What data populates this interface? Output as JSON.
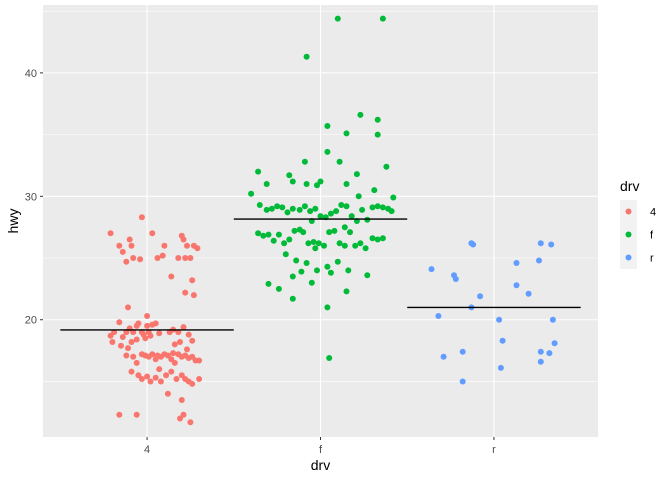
{
  "chart_data": {
    "type": "scatter",
    "subtype": "jitter with per-group mean line",
    "xlabel": "drv",
    "ylabel": "hwy",
    "categories": [
      "4",
      "f",
      "r"
    ],
    "yticks": [
      20,
      30,
      40
    ],
    "ylim": [
      10.5,
      45.5
    ],
    "grid": true,
    "legend": {
      "title": "drv",
      "position": "right",
      "entries": [
        "4",
        "f",
        "r"
      ]
    },
    "colors": {
      "4": "#F8766D",
      "f": "#00BA38",
      "r": "#619CFF",
      "mean_line": "#000000",
      "panel": "#EBEBEB",
      "grid": "#FFFFFF"
    },
    "means": {
      "4": 19.17,
      "f": 28.16,
      "r": 21.0
    },
    "series": [
      {
        "category": "4",
        "points": [
          [
            -0.21,
            27.0
          ],
          [
            -0.16,
            26.0
          ],
          [
            -0.1,
            26.5
          ],
          [
            -0.09,
            26.0
          ],
          [
            -0.03,
            28.3
          ],
          [
            -0.08,
            25.0
          ],
          [
            -0.14,
            25.5
          ],
          [
            -0.12,
            24.7
          ],
          [
            0.03,
            27.0
          ],
          [
            0.06,
            25.0
          ],
          [
            0.09,
            25.2
          ],
          [
            0.1,
            26.0
          ],
          [
            0.2,
            26.8
          ],
          [
            0.21,
            26.5
          ],
          [
            0.23,
            26.0
          ],
          [
            0.27,
            26.0
          ],
          [
            0.29,
            25.8
          ],
          [
            0.22,
            25.0
          ],
          [
            0.25,
            25.0
          ],
          [
            0.18,
            25.0
          ],
          [
            0.14,
            23.5
          ],
          [
            0.26,
            23.2
          ],
          [
            0.22,
            22.2
          ],
          [
            0.27,
            22.0
          ],
          [
            -0.11,
            21.0
          ],
          [
            -0.04,
            24.9
          ],
          [
            -0.16,
            19.8
          ],
          [
            -0.19,
            19.0
          ],
          [
            -0.21,
            18.7
          ],
          [
            -0.2,
            18.2
          ],
          [
            -0.15,
            17.9
          ],
          [
            -0.14,
            18.6
          ],
          [
            -0.12,
            19.0
          ],
          [
            -0.1,
            19.3
          ],
          [
            -0.08,
            19.0
          ],
          [
            -0.06,
            19.5
          ],
          [
            -0.05,
            19.7
          ],
          [
            -0.03,
            19.0
          ],
          [
            -0.02,
            18.8
          ],
          [
            0.0,
            19.5
          ],
          [
            0.01,
            19.0
          ],
          [
            0.03,
            19.6
          ],
          [
            0.05,
            19.7
          ],
          [
            0.07,
            18.9
          ],
          [
            0.0,
            20.3
          ],
          [
            -0.06,
            18.4
          ],
          [
            -0.09,
            18.2
          ],
          [
            -0.11,
            17.7
          ],
          [
            -0.01,
            18.5
          ],
          [
            0.02,
            18.7
          ],
          [
            -0.12,
            17.1
          ],
          [
            -0.08,
            17.0
          ],
          [
            -0.06,
            16.5
          ],
          [
            -0.03,
            17.2
          ],
          [
            -0.01,
            17.1
          ],
          [
            0.01,
            17.0
          ],
          [
            0.03,
            17.2
          ],
          [
            0.05,
            16.8
          ],
          [
            0.06,
            17.1
          ],
          [
            0.08,
            17.0
          ],
          [
            0.1,
            17.2
          ],
          [
            0.12,
            17.1
          ],
          [
            0.14,
            16.8
          ],
          [
            0.15,
            17.3
          ],
          [
            0.16,
            16.5
          ],
          [
            0.18,
            17.2
          ],
          [
            0.2,
            17.0
          ],
          [
            0.22,
            17.1
          ],
          [
            0.24,
            16.9
          ],
          [
            0.26,
            17.0
          ],
          [
            0.28,
            16.7
          ],
          [
            0.3,
            16.7
          ],
          [
            -0.09,
            15.8
          ],
          [
            -0.05,
            15.5
          ],
          [
            -0.03,
            15.2
          ],
          [
            0.0,
            15.4
          ],
          [
            0.02,
            15.0
          ],
          [
            0.05,
            15.3
          ],
          [
            0.08,
            15.0
          ],
          [
            0.11,
            15.5
          ],
          [
            0.14,
            15.8
          ],
          [
            0.17,
            15.2
          ],
          [
            0.2,
            15.5
          ],
          [
            0.22,
            15.2
          ],
          [
            0.24,
            15.0
          ],
          [
            0.26,
            14.8
          ],
          [
            0.3,
            15.2
          ],
          [
            0.12,
            14.0
          ],
          [
            0.07,
            16.0
          ],
          [
            0.15,
            19.2
          ],
          [
            0.18,
            19.0
          ],
          [
            0.21,
            19.4
          ],
          [
            0.24,
            18.8
          ],
          [
            0.26,
            18.3
          ],
          [
            0.19,
            18.2
          ],
          [
            0.16,
            18.0
          ],
          [
            0.23,
            17.6
          ],
          [
            0.13,
            19.0
          ],
          [
            -0.16,
            12.3
          ],
          [
            -0.06,
            12.3
          ],
          [
            0.19,
            12.0
          ],
          [
            0.21,
            12.3
          ],
          [
            0.25,
            11.7
          ],
          [
            0.2,
            13.5
          ]
        ]
      },
      {
        "category": "f",
        "points": [
          [
            0.1,
            44.4
          ],
          [
            0.36,
            44.4
          ],
          [
            -0.08,
            41.3
          ],
          [
            0.23,
            36.6
          ],
          [
            0.33,
            36.2
          ],
          [
            0.04,
            35.7
          ],
          [
            0.15,
            35.1
          ],
          [
            0.33,
            35.0
          ],
          [
            0.04,
            33.6
          ],
          [
            -0.09,
            32.8
          ],
          [
            0.11,
            32.8
          ],
          [
            0.38,
            32.4
          ],
          [
            0.21,
            31.8
          ],
          [
            -0.36,
            32.0
          ],
          [
            -0.18,
            31.7
          ],
          [
            0.0,
            31.2
          ],
          [
            -0.16,
            31.2
          ],
          [
            -0.08,
            31.0
          ],
          [
            -0.02,
            30.9
          ],
          [
            0.15,
            31.0
          ],
          [
            -0.31,
            31.0
          ],
          [
            0.31,
            30.5
          ],
          [
            0.22,
            30.0
          ],
          [
            0.42,
            29.9
          ],
          [
            -0.4,
            30.2
          ],
          [
            -0.35,
            29.3
          ],
          [
            -0.31,
            28.9
          ],
          [
            -0.28,
            29.0
          ],
          [
            -0.25,
            29.2
          ],
          [
            -0.22,
            29.1
          ],
          [
            -0.19,
            28.7
          ],
          [
            -0.16,
            29.0
          ],
          [
            -0.12,
            28.9
          ],
          [
            -0.09,
            29.2
          ],
          [
            -0.06,
            28.8
          ],
          [
            -0.03,
            29.0
          ],
          [
            0.0,
            28.4
          ],
          [
            0.03,
            28.3
          ],
          [
            0.06,
            28.6
          ],
          [
            0.09,
            28.8
          ],
          [
            0.12,
            29.3
          ],
          [
            0.15,
            29.2
          ],
          [
            0.18,
            28.4
          ],
          [
            0.21,
            28.0
          ],
          [
            0.24,
            28.9
          ],
          [
            0.27,
            28.1
          ],
          [
            0.3,
            29.1
          ],
          [
            0.33,
            29.2
          ],
          [
            0.36,
            29.1
          ],
          [
            0.39,
            29.0
          ],
          [
            0.41,
            28.8
          ],
          [
            -0.05,
            28.0
          ],
          [
            0.14,
            27.5
          ],
          [
            -0.36,
            27.0
          ],
          [
            -0.33,
            26.8
          ],
          [
            -0.3,
            26.9
          ],
          [
            -0.27,
            26.4
          ],
          [
            -0.24,
            26.9
          ],
          [
            -0.21,
            26.2
          ],
          [
            -0.18,
            26.5
          ],
          [
            -0.15,
            27.2
          ],
          [
            -0.12,
            27.3
          ],
          [
            -0.1,
            27.1
          ],
          [
            -0.07,
            26.2
          ],
          [
            -0.04,
            26.3
          ],
          [
            -0.01,
            26.2
          ],
          [
            0.02,
            26.0
          ],
          [
            0.05,
            27.1
          ],
          [
            0.08,
            27.2
          ],
          [
            0.11,
            26.2
          ],
          [
            0.14,
            26.0
          ],
          [
            0.17,
            27.1
          ],
          [
            0.2,
            26.0
          ],
          [
            0.23,
            26.2
          ],
          [
            0.26,
            25.8
          ],
          [
            0.3,
            26.6
          ],
          [
            0.33,
            26.5
          ],
          [
            0.36,
            26.6
          ],
          [
            -0.03,
            25.8
          ],
          [
            -0.2,
            25.3
          ],
          [
            -0.14,
            24.8
          ],
          [
            -0.08,
            24.6
          ],
          [
            -0.02,
            24.0
          ],
          [
            0.04,
            24.3
          ],
          [
            0.1,
            24.7
          ],
          [
            0.16,
            24.0
          ],
          [
            -0.11,
            23.9
          ],
          [
            -0.16,
            23.5
          ],
          [
            -0.24,
            22.5
          ],
          [
            -0.3,
            22.9
          ],
          [
            -0.05,
            23.0
          ],
          [
            0.06,
            23.8
          ],
          [
            0.27,
            23.6
          ],
          [
            -0.16,
            21.7
          ],
          [
            0.04,
            21.0
          ],
          [
            0.15,
            22.3
          ],
          [
            0.05,
            16.9
          ]
        ]
      },
      {
        "category": "r",
        "points": [
          [
            -0.36,
            24.1
          ],
          [
            -0.23,
            23.6
          ],
          [
            -0.22,
            23.3
          ],
          [
            -0.13,
            26.2
          ],
          [
            -0.12,
            26.1
          ],
          [
            0.13,
            24.6
          ],
          [
            0.13,
            22.8
          ],
          [
            0.26,
            24.8
          ],
          [
            0.27,
            26.2
          ],
          [
            0.33,
            26.1
          ],
          [
            0.2,
            22.1
          ],
          [
            -0.08,
            21.9
          ],
          [
            -0.32,
            20.3
          ],
          [
            -0.13,
            21.0
          ],
          [
            0.03,
            20.0
          ],
          [
            0.34,
            20.0
          ],
          [
            -0.18,
            17.4
          ],
          [
            -0.29,
            17.0
          ],
          [
            0.05,
            18.3
          ],
          [
            0.27,
            17.4
          ],
          [
            0.32,
            17.3
          ],
          [
            0.35,
            18.1
          ],
          [
            0.27,
            16.6
          ],
          [
            -0.18,
            15.0
          ],
          [
            0.04,
            16.1
          ]
        ]
      }
    ]
  }
}
